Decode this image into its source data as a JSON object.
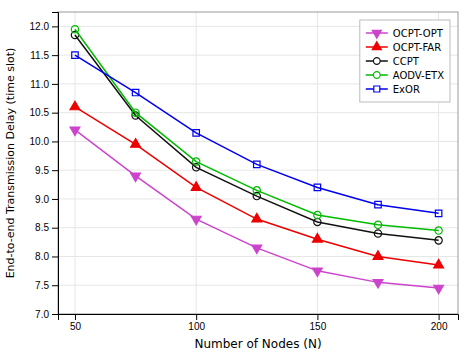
{
  "chart_data": {
    "type": "line",
    "x": [
      50,
      75,
      100,
      125,
      150,
      175,
      200
    ],
    "series": [
      {
        "name": "OCPT-OPT",
        "color": "#CC44CC",
        "marker": "triangle-down",
        "values": [
          10.2,
          9.4,
          8.65,
          8.15,
          7.75,
          7.55,
          7.45
        ]
      },
      {
        "name": "OCPT-FAR",
        "color": "#EE0000",
        "marker": "triangle-up",
        "values": [
          10.6,
          9.95,
          9.2,
          8.65,
          8.3,
          8.0,
          7.85
        ]
      },
      {
        "name": "CCPT",
        "color": "#111111",
        "marker": "circle-open",
        "values": [
          11.85,
          10.45,
          9.55,
          9.05,
          8.6,
          8.4,
          8.28
        ]
      },
      {
        "name": "AODV-ETX",
        "color": "#00BB00",
        "marker": "circle-open",
        "values": [
          11.95,
          10.5,
          9.65,
          9.15,
          8.72,
          8.55,
          8.45
        ]
      },
      {
        "name": "ExOR",
        "color": "#0000EE",
        "marker": "square-open",
        "values": [
          11.5,
          10.85,
          10.15,
          9.6,
          9.2,
          8.9,
          8.75
        ]
      }
    ],
    "xlabel": "Number of Nodes (N)",
    "ylabel": "End-to-end Transmission Delay (time slot)",
    "xlim": [
      43,
      208
    ],
    "ylim": [
      7.0,
      12.25
    ],
    "xticks": [
      50,
      100,
      150,
      200
    ],
    "yticks": [
      {
        "value": 7,
        "label": "7.0"
      },
      7.5,
      {
        "value": 8,
        "label": "8.0"
      },
      8.5,
      {
        "value": 9,
        "label": "9.0"
      },
      9.5,
      {
        "value": 10,
        "label": "10.0"
      },
      10.5,
      {
        "value": 11,
        "label": "11.0"
      },
      11.5,
      {
        "value": 12,
        "label": "12.0"
      }
    ],
    "grid": true,
    "legend": "upper right"
  }
}
